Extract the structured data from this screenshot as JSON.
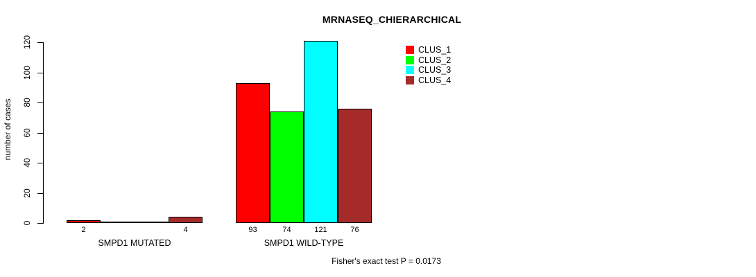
{
  "chart_data": {
    "type": "bar",
    "title": "MRNASEQ_CHIERARCHICAL",
    "xlabel": "",
    "ylabel": "number of cases",
    "ylim": [
      0,
      120
    ],
    "yticks": [
      0,
      20,
      40,
      60,
      80,
      100,
      120
    ],
    "grid": false,
    "legend_position": "top-right",
    "series": [
      {
        "name": "CLUS_1",
        "color": "#FF0000"
      },
      {
        "name": "CLUS_2",
        "color": "#00FF00"
      },
      {
        "name": "CLUS_3",
        "color": "#00FFFF"
      },
      {
        "name": "CLUS_4",
        "color": "#A52A2A"
      }
    ],
    "groups": [
      {
        "label": "SMPD1 MUTATED",
        "values": [
          2,
          0,
          0,
          4
        ],
        "value_labels": [
          "2",
          null,
          null,
          "4"
        ]
      },
      {
        "label": "SMPD1 WILD-TYPE",
        "values": [
          93,
          74,
          121,
          76
        ],
        "value_labels": [
          "93",
          "74",
          "121",
          "76"
        ]
      }
    ],
    "annotation": "Fisher's exact test P = 0.0173"
  }
}
